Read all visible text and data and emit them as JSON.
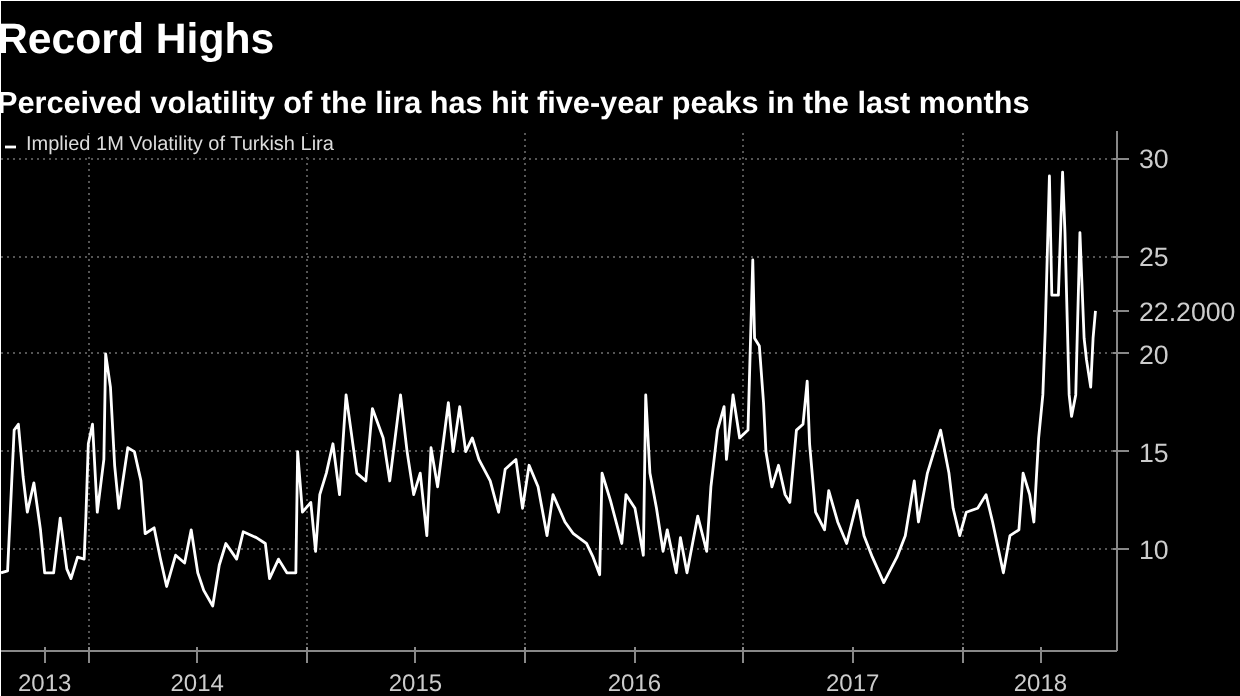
{
  "chart_data": {
    "type": "line",
    "title": "Record Highs",
    "subtitle": "Perceived volatility of the lira has hit five-year peaks in the last months",
    "x": [
      "2013-08-08",
      "2013-08-19",
      "2013-08-26",
      "2013-08-30",
      "2013-09-06",
      "2013-09-14",
      "2013-09-21",
      "2013-10-02",
      "2013-10-13",
      "2013-10-20",
      "2013-11-04",
      "2013-11-15",
      "2013-11-26",
      "2013-12-03",
      "2013-12-14",
      "2013-12-25",
      "2013-12-28",
      "2014-01-01",
      "2014-01-08",
      "2014-01-16",
      "2014-01-27",
      "2014-01-30",
      "2014-02-07",
      "2014-02-14",
      "2014-02-21",
      "2014-03-08",
      "2014-03-19",
      "2014-03-30",
      "2014-04-06",
      "2014-04-21",
      "2014-05-01",
      "2014-05-12",
      "2014-05-27",
      "2014-06-11",
      "2014-06-22",
      "2014-07-03",
      "2014-07-13",
      "2014-07-28",
      "2014-08-08",
      "2014-08-19",
      "2014-09-06",
      "2014-09-17",
      "2014-10-09",
      "2014-10-24",
      "2014-10-31",
      "2014-11-15",
      "2014-11-29",
      "2014-12-14",
      "2014-12-17",
      "2014-12-25",
      "2015-01-08",
      "2015-01-16",
      "2015-01-23",
      "2015-02-03",
      "2015-02-14",
      "2015-02-25",
      "2015-03-08",
      "2015-03-26",
      "2015-04-10",
      "2015-04-21",
      "2015-05-09",
      "2015-05-20",
      "2015-06-07",
      "2015-06-18",
      "2015-06-29",
      "2015-07-10",
      "2015-07-21",
      "2015-07-28",
      "2015-08-08",
      "2015-08-26",
      "2015-09-03",
      "2015-09-14",
      "2015-09-24",
      "2015-10-05",
      "2015-10-16",
      "2015-11-04",
      "2015-11-18",
      "2015-11-29",
      "2015-12-17",
      "2015-12-28",
      "2016-01-08",
      "2016-01-23",
      "2016-02-07",
      "2016-02-17",
      "2016-03-08",
      "2016-03-22",
      "2016-04-13",
      "2016-04-24",
      "2016-05-05",
      "2016-05-09",
      "2016-05-23",
      "2016-06-11",
      "2016-06-18",
      "2016-07-03",
      "2016-07-17",
      "2016-07-21",
      "2016-07-28",
      "2016-08-08",
      "2016-08-19",
      "2016-08-26",
      "2016-09-10",
      "2016-09-17",
      "2016-09-28",
      "2016-10-16",
      "2016-10-31",
      "2016-11-07",
      "2016-11-18",
      "2016-11-29",
      "2016-12-03",
      "2016-12-14",
      "2016-12-25",
      "2017-01-08",
      "2017-01-16",
      "2017-01-19",
      "2017-01-27",
      "2017-02-03",
      "2017-02-07",
      "2017-02-17",
      "2017-02-28",
      "2017-03-11",
      "2017-03-19",
      "2017-03-30",
      "2017-04-10",
      "2017-04-17",
      "2017-04-21",
      "2017-05-01",
      "2017-05-16",
      "2017-05-23",
      "2017-06-07",
      "2017-06-22",
      "2017-07-10",
      "2017-07-21",
      "2017-08-04",
      "2017-08-23",
      "2017-09-14",
      "2017-09-28",
      "2017-10-13",
      "2017-10-20",
      "2017-11-04",
      "2017-11-11",
      "2017-11-26",
      "2017-12-10",
      "2017-12-17",
      "2017-12-28",
      "2018-01-08",
      "2018-01-27",
      "2018-02-10",
      "2018-02-21",
      "2018-03-11",
      "2018-03-22",
      "2018-04-06",
      "2018-04-13",
      "2018-04-24",
      "2018-05-01",
      "2018-05-09",
      "2018-05-16",
      "2018-05-20",
      "2018-05-27",
      "2018-05-31",
      "2018-06-11",
      "2018-06-18",
      "2018-06-22",
      "2018-06-29",
      "2018-07-03",
      "2018-07-10",
      "2018-07-17",
      "2018-07-24",
      "2018-07-28",
      "2018-08-04",
      "2018-08-08",
      "2018-08-12"
    ],
    "series": [
      {
        "name": "Implied 1M Volatility of Turkish Lira",
        "color": "#ffffff",
        "values": [
          8.8,
          8.9,
          13.5,
          16.1,
          16.4,
          13.7,
          11.9,
          13.4,
          11.0,
          8.8,
          8.8,
          11.6,
          9.0,
          8.5,
          9.6,
          9.5,
          11.7,
          15.4,
          16.4,
          11.9,
          14.6,
          20.0,
          18.3,
          14.3,
          12.1,
          15.2,
          15.0,
          13.5,
          10.8,
          11.1,
          9.6,
          8.1,
          9.7,
          9.3,
          11.0,
          8.8,
          7.9,
          7.1,
          9.2,
          10.3,
          9.5,
          10.9,
          10.6,
          10.3,
          8.5,
          9.5,
          8.8,
          8.8,
          15.0,
          11.9,
          12.4,
          9.9,
          12.8,
          13.9,
          15.4,
          12.8,
          17.9,
          13.9,
          13.5,
          17.2,
          15.7,
          13.5,
          17.9,
          15.0,
          12.8,
          13.9,
          10.7,
          15.2,
          13.2,
          17.5,
          15.0,
          17.3,
          15.0,
          15.7,
          14.6,
          13.5,
          11.9,
          14.1,
          14.6,
          12.1,
          14.3,
          13.2,
          10.7,
          12.8,
          11.4,
          10.8,
          10.3,
          9.6,
          8.7,
          13.9,
          12.5,
          10.3,
          12.8,
          12.1,
          9.7,
          17.9,
          13.9,
          12.1,
          9.9,
          11.0,
          8.8,
          10.6,
          8.8,
          11.7,
          9.9,
          13.2,
          16.1,
          17.3,
          14.6,
          17.9,
          15.7,
          16.1,
          24.8,
          20.8,
          20.4,
          17.5,
          15.0,
          13.2,
          14.3,
          12.8,
          12.4,
          16.1,
          16.4,
          18.6,
          15.4,
          11.9,
          11.0,
          13.0,
          11.4,
          10.3,
          12.5,
          10.7,
          9.6,
          8.3,
          9.6,
          10.7,
          13.5,
          11.4,
          13.9,
          14.6,
          16.1,
          13.9,
          12.1,
          10.7,
          11.9,
          12.1,
          12.8,
          11.4,
          8.8,
          10.7,
          11.0,
          13.9,
          12.8,
          11.4,
          15.7,
          17.9,
          21.2,
          29.1,
          23.0,
          23.0,
          29.3,
          26.2,
          17.9,
          16.8,
          17.9,
          26.2,
          20.8,
          19.7,
          18.3,
          20.8,
          22.2
        ],
        "value_labels": [
          null,
          null,
          null,
          null,
          null,
          null,
          null,
          null,
          null,
          null,
          null,
          null,
          null,
          null,
          null,
          null,
          null,
          null,
          null,
          null,
          null,
          null,
          null,
          null,
          null,
          null,
          null,
          null,
          null,
          null,
          null,
          null,
          null,
          null,
          null,
          null,
          null,
          null,
          null,
          null,
          null,
          null,
          null,
          null,
          null,
          null,
          null,
          null,
          null,
          null,
          null,
          null,
          null,
          null,
          null,
          null,
          null,
          null,
          null,
          null,
          null,
          null,
          null,
          null,
          null,
          null,
          null,
          null,
          null,
          null,
          null,
          null,
          null,
          null,
          null,
          null,
          null,
          null,
          null,
          null,
          null,
          null,
          null,
          null,
          null,
          null,
          null,
          null,
          null,
          null,
          null,
          null,
          null,
          null,
          null,
          null,
          null,
          null,
          null,
          null,
          null,
          null,
          null,
          null,
          null,
          null,
          null,
          null,
          null,
          null,
          null,
          null,
          null,
          null,
          null,
          null,
          null,
          null,
          null,
          null,
          null,
          null,
          null,
          null,
          null,
          null,
          null,
          null,
          null,
          null,
          null,
          null,
          null,
          null,
          null,
          null,
          null,
          null,
          null,
          null,
          null,
          null,
          null,
          null,
          null,
          null,
          null,
          null,
          null,
          null,
          null,
          null,
          null,
          null,
          null,
          null,
          null,
          null,
          null,
          null,
          null,
          null,
          null,
          null,
          null,
          null,
          null,
          null,
          null,
          null,
          "22.2000"
        ]
      }
    ],
    "xlim": [
      "2013-08-08",
      "2018-09-17"
    ],
    "xticks": [
      {
        "value": "2013-10-20",
        "label": "2013"
      },
      {
        "value": "2014-01-01",
        "label": null
      },
      {
        "value": "2014-07-02",
        "label": "2014"
      },
      {
        "value": "2015-01-01",
        "label": null
      },
      {
        "value": "2015-07-02",
        "label": "2015"
      },
      {
        "value": "2016-01-01",
        "label": null
      },
      {
        "value": "2016-07-02",
        "label": "2016"
      },
      {
        "value": "2017-01-01",
        "label": null
      },
      {
        "value": "2017-07-02",
        "label": "2017"
      },
      {
        "value": "2018-01-01",
        "label": null
      },
      {
        "value": "2018-05-12",
        "label": "2018"
      }
    ],
    "ylim": [
      4.8,
      31.4
    ],
    "yticks": [
      10,
      15,
      20,
      25,
      30
    ],
    "grid": true,
    "legend": "top left",
    "line_style": "solid",
    "marker": "none"
  }
}
